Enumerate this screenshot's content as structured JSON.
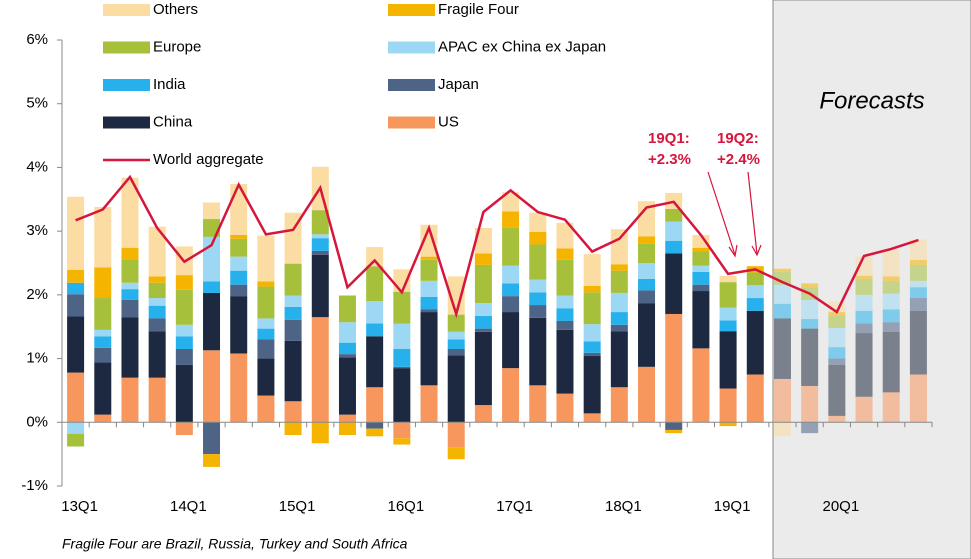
{
  "chart_data": {
    "type": "stacked-bar",
    "categories": [
      "13Q1",
      null,
      null,
      null,
      "14Q1",
      null,
      null,
      null,
      "15Q1",
      null,
      null,
      null,
      "16Q1",
      null,
      null,
      null,
      "17Q1",
      null,
      null,
      null,
      "18Q1",
      null,
      null,
      null,
      "19Q1",
      null,
      null,
      null,
      "20Q1",
      null,
      null,
      null
    ],
    "series": [
      {
        "name": "US",
        "color": "#f7975e",
        "values": [
          0.78,
          0.12,
          0.7,
          0.7,
          -0.2,
          1.13,
          1.08,
          0.42,
          0.33,
          1.65,
          0.12,
          0.55,
          -0.25,
          0.58,
          -0.4,
          0.27,
          0.85,
          0.58,
          0.45,
          0.14,
          0.55,
          0.87,
          1.7,
          1.16,
          0.53,
          0.75,
          0.68,
          0.57,
          0.1,
          0.4,
          0.47,
          0.75
        ]
      },
      {
        "name": "China",
        "color": "#1d2940",
        "values": [
          0.88,
          0.82,
          0.95,
          0.73,
          0.9,
          0.9,
          0.9,
          0.58,
          0.95,
          0.98,
          0.9,
          0.8,
          0.85,
          1.15,
          1.05,
          1.15,
          0.88,
          1.06,
          1.0,
          0.9,
          0.88,
          1.0,
          0.95,
          0.9,
          0.9,
          1.0,
          0.95,
          0.9,
          0.8,
          1.0,
          0.95,
          1.0
        ]
      },
      {
        "name": "Japan",
        "color": "#4d6486",
        "values": [
          0.35,
          0.23,
          0.27,
          0.2,
          0.25,
          -0.5,
          0.18,
          0.3,
          0.33,
          0.06,
          0.05,
          -0.1,
          0.02,
          0.04,
          0.1,
          0.05,
          0.25,
          0.2,
          0.14,
          0.05,
          0.1,
          0.2,
          -0.12,
          0.1,
          0.0,
          0.0,
          0.0,
          -0.17,
          0.1,
          0.15,
          0.15,
          0.2
        ]
      },
      {
        "name": "India",
        "color": "#27b1ec",
        "values": [
          0.18,
          0.18,
          0.17,
          0.2,
          0.2,
          0.18,
          0.22,
          0.17,
          0.2,
          0.2,
          0.18,
          0.2,
          0.28,
          0.2,
          0.15,
          0.2,
          0.2,
          0.2,
          0.2,
          0.18,
          0.2,
          0.18,
          0.2,
          0.2,
          0.17,
          0.2,
          0.23,
          0.15,
          0.18,
          0.2,
          0.2,
          0.17
        ]
      },
      {
        "name": "APAC ex China ex Japan",
        "color": "#9cd8f3",
        "values": [
          -0.18,
          0.1,
          0.1,
          0.12,
          0.18,
          0.7,
          0.22,
          0.16,
          0.18,
          0.06,
          0.32,
          0.35,
          0.4,
          0.25,
          0.12,
          0.2,
          0.28,
          0.2,
          0.2,
          0.27,
          0.3,
          0.25,
          0.3,
          0.1,
          0.2,
          0.2,
          0.3,
          0.3,
          0.3,
          0.25,
          0.25,
          0.1
        ]
      },
      {
        "name": "Europe",
        "color": "#a6c03c",
        "values": [
          -0.2,
          0.5,
          0.37,
          0.24,
          0.55,
          0.28,
          0.28,
          0.5,
          0.5,
          0.38,
          0.42,
          0.55,
          0.5,
          0.33,
          0.27,
          0.6,
          0.6,
          0.55,
          0.56,
          0.5,
          0.35,
          0.3,
          0.2,
          0.22,
          0.4,
          0.2,
          0.2,
          0.2,
          0.2,
          0.25,
          0.2,
          0.25
        ]
      },
      {
        "name": "Fragile Four",
        "color": "#f5b400",
        "values": [
          0.2,
          0.48,
          0.18,
          0.1,
          0.23,
          -0.2,
          0.06,
          0.08,
          -0.2,
          -0.33,
          -0.2,
          -0.12,
          -0.1,
          0.05,
          -0.18,
          0.18,
          0.25,
          0.2,
          0.18,
          0.1,
          0.1,
          0.12,
          -0.05,
          0.06,
          -0.06,
          0.1,
          0.05,
          0.06,
          0.05,
          0.05,
          0.07,
          0.08
        ]
      },
      {
        "name": "Others",
        "color": "#fbdca2",
        "values": [
          1.15,
          0.95,
          1.1,
          0.78,
          0.45,
          0.26,
          0.8,
          0.72,
          0.8,
          0.68,
          0.0,
          0.3,
          0.35,
          0.5,
          0.6,
          0.4,
          0.3,
          0.3,
          0.4,
          0.5,
          0.55,
          0.55,
          0.25,
          0.2,
          0.1,
          0.0,
          -0.22,
          0.0,
          0.17,
          0.3,
          0.43,
          0.32
        ]
      }
    ],
    "line": {
      "name": "World aggregate",
      "color": "#d6163c",
      "values": [
        3.17,
        3.34,
        3.85,
        3.05,
        2.52,
        2.78,
        3.73,
        2.95,
        3.02,
        3.68,
        2.12,
        2.54,
        2.04,
        3.05,
        1.7,
        3.3,
        3.64,
        3.3,
        3.18,
        2.68,
        2.88,
        3.37,
        3.46,
        2.94,
        2.33,
        2.4,
        2.2,
        2.02,
        1.73,
        2.61,
        2.72,
        2.86
      ]
    },
    "ylim": [
      -1,
      6
    ],
    "yticks": [
      {
        "value": -1,
        "label": "-1%"
      },
      {
        "value": 0,
        "label": "0%"
      },
      {
        "value": 1,
        "label": "1%"
      },
      {
        "value": 2,
        "label": "2%"
      },
      {
        "value": 3,
        "label": "3%"
      },
      {
        "value": 4,
        "label": "4%"
      },
      {
        "value": 5,
        "label": "5%"
      },
      {
        "value": 6,
        "label": "6%"
      }
    ],
    "annotations": [
      [
        "19Q1:",
        "+2.3%"
      ],
      [
        "19Q2:",
        "+2.4%"
      ]
    ],
    "forecast_label": "Forecasts",
    "footnote": "Fragile Four are Brazil, Russia, Turkey and South Africa"
  }
}
